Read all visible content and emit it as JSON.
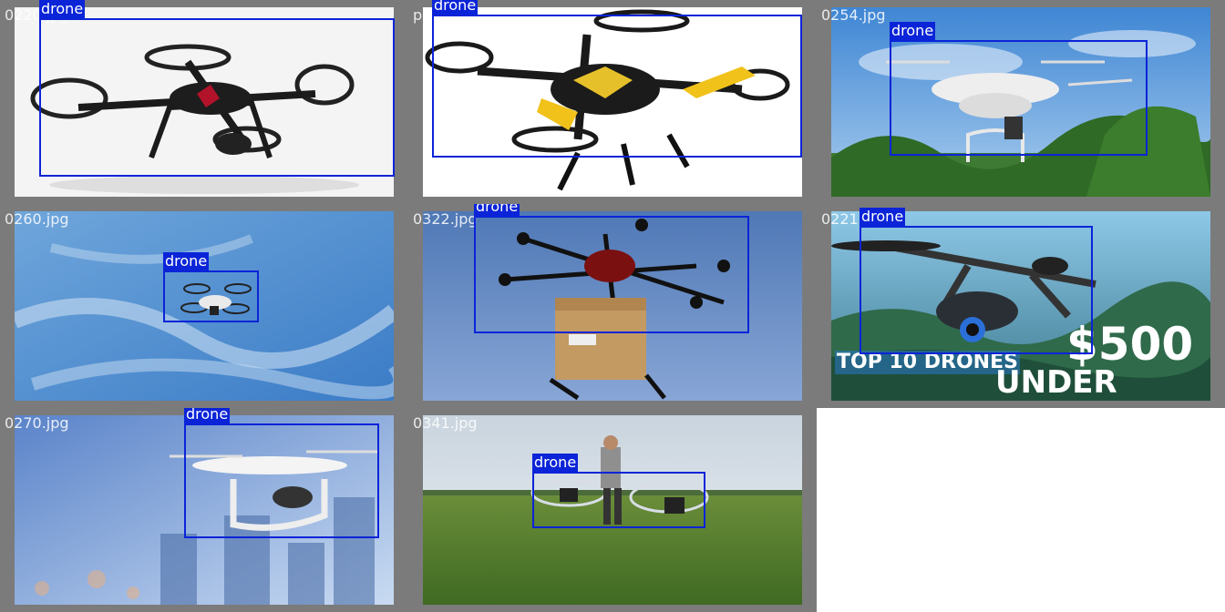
{
  "tiles": [
    {
      "filename": "0220.jpg",
      "label": "drone"
    },
    {
      "filename": "pic_018.jpg",
      "label": "drone"
    },
    {
      "filename": "0254.jpg",
      "label": "drone"
    },
    {
      "filename": "0260.jpg",
      "label": "drone"
    },
    {
      "filename": "0322.jpg",
      "label": "drone"
    },
    {
      "filename": "0221.jpg",
      "label": "drone",
      "overlay": {
        "headline": "TOP 10 DRONES",
        "under": "UNDER",
        "price": "$500"
      }
    },
    {
      "filename": "0270.jpg",
      "label": "drone"
    },
    {
      "filename": "0341.jpg",
      "label": "drone"
    }
  ],
  "colors": {
    "frame": "#7b7b7b",
    "box": "#0b24d8",
    "label_bg": "#0b24d8",
    "label_text": "#ffffff"
  }
}
